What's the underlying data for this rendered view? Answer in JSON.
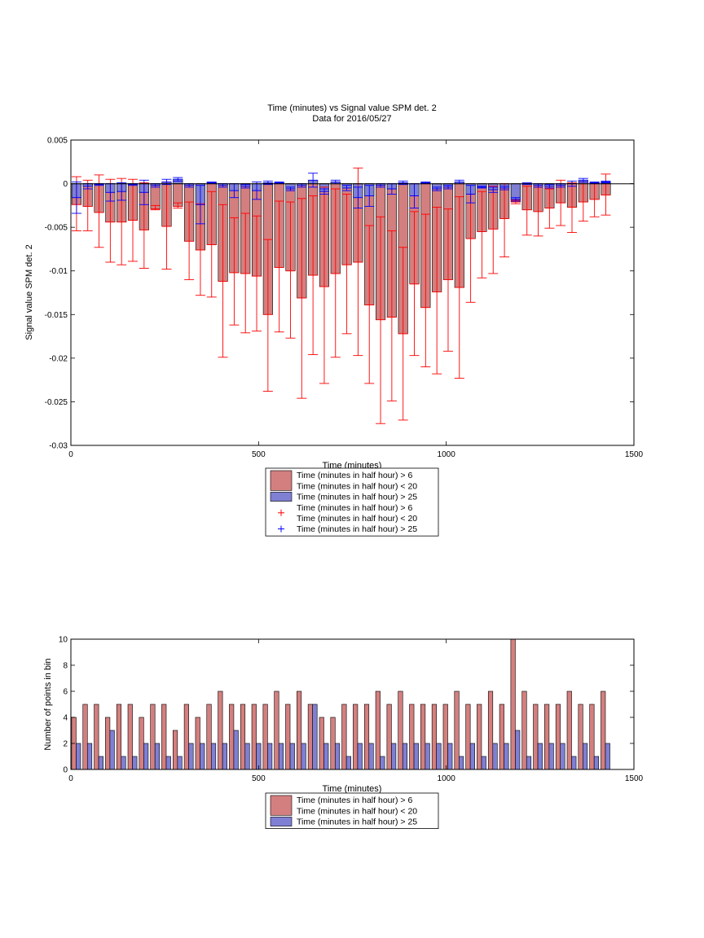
{
  "chart_data": [
    {
      "type": "bar",
      "title": "Time (minutes) vs Signal value SPM det. 2",
      "subtitle": "Data for 2016/05/27",
      "xlabel": "Time (minutes)",
      "ylabel": "Signal value SPM det. 2",
      "xlim": [
        0,
        1500
      ],
      "ylim": [
        -0.03,
        0.005
      ],
      "xticks": [
        0,
        500,
        1000,
        1500
      ],
      "xtick_labels": [
        "0",
        "500",
        "1000",
        "1500"
      ],
      "yticks": [
        -0.03,
        -0.025,
        -0.02,
        -0.015,
        -0.01,
        -0.005,
        0,
        0.005
      ],
      "ytick_labels": [
        "-0.03",
        "-0.025",
        "-0.02",
        "-0.015",
        "-0.01",
        "-0.005",
        "0",
        "0.005"
      ],
      "grid": false,
      "legend_position": "below",
      "x": [
        15,
        45,
        75,
        105,
        135,
        165,
        195,
        225,
        255,
        285,
        315,
        345,
        375,
        405,
        435,
        465,
        495,
        525,
        555,
        585,
        615,
        645,
        675,
        705,
        735,
        765,
        795,
        825,
        855,
        885,
        915,
        945,
        975,
        1005,
        1035,
        1065,
        1095,
        1125,
        1155,
        1185,
        1215,
        1245,
        1275,
        1305,
        1335,
        1365,
        1395,
        1425
      ],
      "series": [
        {
          "name": "Time (minutes in half hour) > 6\nTime (minutes in half hour) < 20",
          "color": "#d47f7f",
          "values": [
            -0.0024,
            -0.0026,
            -0.0033,
            -0.0044,
            -0.0044,
            -0.0042,
            -0.0053,
            -0.0029,
            -0.0049,
            -0.0026,
            -0.0066,
            -0.0076,
            -0.007,
            -0.0112,
            -0.0102,
            -0.0103,
            -0.0106,
            -0.015,
            -0.0096,
            -0.01,
            -0.0131,
            -0.0105,
            -0.0118,
            -0.0103,
            -0.0093,
            -0.009,
            -0.0139,
            -0.0156,
            -0.0153,
            -0.0172,
            -0.0115,
            -0.0142,
            -0.0124,
            -0.011,
            -0.0119,
            -0.0063,
            -0.0055,
            -0.0052,
            -0.004,
            -0.0021,
            -0.003,
            -0.0032,
            -0.0028,
            -0.0022,
            -0.0027,
            -0.0021,
            -0.0018,
            -0.0013
          ],
          "err_upper": [
            0.0008,
            0.0004,
            0.001,
            0.0005,
            0.0006,
            0.0005,
            0.0001,
            -0.0025,
            0.0002,
            -0.0022,
            -0.0021,
            -0.0023,
            -0.0009,
            -0.0024,
            -0.0039,
            -0.0034,
            -0.0037,
            -0.0064,
            -0.002,
            -0.0021,
            -0.0017,
            -0.0014,
            -0.0004,
            -0.0006,
            -0.0012,
            0.0018,
            -0.0048,
            -0.0038,
            -0.0054,
            -0.0073,
            -0.0032,
            -0.0035,
            -0.0027,
            -0.0029,
            -0.0015,
            -0.0012,
            -0.0009,
            -0.0003,
            0.0,
            -0.0019,
            -0.0003,
            -0.0004,
            -0.0006,
            0.0004,
            0.0001,
            0.0002,
            0.0001,
            0.0011
          ],
          "err_lower": [
            -0.0054,
            -0.0054,
            -0.0073,
            -0.009,
            -0.0093,
            -0.0089,
            -0.0097,
            -0.003,
            -0.0098,
            -0.0028,
            -0.011,
            -0.0128,
            -0.013,
            -0.0199,
            -0.0162,
            -0.0171,
            -0.0169,
            -0.0238,
            -0.017,
            -0.0177,
            -0.0246,
            -0.0196,
            -0.0229,
            -0.0199,
            -0.0172,
            -0.0197,
            -0.0229,
            -0.0275,
            -0.0249,
            -0.0271,
            -0.0197,
            -0.021,
            -0.0218,
            -0.0192,
            -0.0223,
            -0.0136,
            -0.0108,
            -0.0103,
            -0.0084,
            -0.0023,
            -0.0059,
            -0.006,
            -0.0051,
            -0.0048,
            -0.0056,
            -0.0043,
            -0.0038,
            -0.0036
          ]
        },
        {
          "name": "Time (minutes in half hour) > 25",
          "color": "#7f7fd4",
          "values": [
            -0.0016,
            -0.0003,
            -0.0001,
            -0.001,
            -0.0009,
            -0.0001,
            -0.001,
            -0.0002,
            0.0002,
            0.0005,
            -0.0002,
            -0.0024,
            0.0001,
            -0.0002,
            -0.0008,
            -0.0003,
            -0.0008,
            0.0001,
            0.0001,
            -0.0006,
            -0.0002,
            0.0004,
            -0.0009,
            0.0002,
            -0.0005,
            -0.0016,
            -0.0014,
            -0.0002,
            -0.0006,
            0.0001,
            -0.0014,
            0.0001,
            -0.0006,
            -0.0004,
            0.0002,
            -0.0012,
            -0.0004,
            -0.0007,
            -0.0005,
            -0.0018,
            0.0,
            -0.0002,
            -0.0003,
            -0.0002,
            0.0,
            0.0004,
            0.0001,
            0.0002
          ],
          "err_upper": [
            0.0002,
            0.0,
            0.0,
            0.0,
            0.0001,
            0.0,
            0.0004,
            0.0,
            0.0005,
            0.0007,
            0.0,
            -0.0002,
            0.0002,
            0.0,
            0.0,
            -0.0001,
            0.0002,
            0.0003,
            0.0002,
            -0.0004,
            0.0,
            0.0012,
            -0.0006,
            0.0004,
            -0.0002,
            -0.0004,
            -0.0002,
            0.0,
            0.0,
            0.0003,
            0.0,
            0.0002,
            -0.0004,
            -0.0002,
            0.0004,
            -0.0002,
            -0.0003,
            -0.0004,
            -0.0003,
            -0.0016,
            0.0001,
            0.0,
            -0.0001,
            0.0,
            0.0003,
            0.0006,
            0.0002,
            0.0003
          ],
          "err_lower": [
            -0.0034,
            -0.0006,
            -0.0002,
            -0.002,
            -0.0019,
            -0.0002,
            -0.0024,
            -0.0004,
            -0.0001,
            0.0003,
            -0.0004,
            -0.0046,
            0.0,
            -0.0004,
            -0.0016,
            -0.0005,
            -0.0018,
            -0.0001,
            0.0,
            -0.0008,
            -0.0004,
            -0.0004,
            -0.0012,
            0.0,
            -0.0008,
            -0.0028,
            -0.0026,
            -0.0004,
            -0.0012,
            -0.0001,
            -0.0028,
            0.0,
            -0.0008,
            -0.0006,
            0.0,
            -0.0022,
            -0.0005,
            -0.001,
            -0.0007,
            -0.002,
            -0.0001,
            -0.0004,
            -0.0005,
            -0.0004,
            -0.0003,
            0.0002,
            0.0,
            0.0001
          ]
        }
      ],
      "legend": [
        {
          "kind": "patch",
          "color": "#d47f7f",
          "lines": [
            "Time (minutes in half hour) > 6",
            "Time (minutes in half hour) < 20"
          ]
        },
        {
          "kind": "patch",
          "color": "#7f7fd4",
          "lines": [
            "Time (minutes in half hour) > 25"
          ]
        },
        {
          "kind": "marker",
          "color": "#ff0000",
          "lines": [
            "Time (minutes in half hour) > 6",
            "Time (minutes in half hour) < 20"
          ]
        },
        {
          "kind": "marker",
          "color": "#0000ff",
          "lines": [
            "Time (minutes in half hour) > 25"
          ]
        }
      ]
    },
    {
      "type": "bar",
      "xlabel": "Time (minutes)",
      "ylabel": "Number of points in bin",
      "xlim": [
        0,
        1500
      ],
      "ylim": [
        0,
        10
      ],
      "xticks": [
        0,
        500,
        1000,
        1500
      ],
      "xtick_labels": [
        "0",
        "500",
        "1000",
        "1500"
      ],
      "yticks": [
        0,
        2,
        4,
        6,
        8,
        10
      ],
      "ytick_labels": [
        "0",
        "2",
        "4",
        "6",
        "8",
        "10"
      ],
      "grid": false,
      "legend_position": "below",
      "x": [
        15,
        45,
        75,
        105,
        135,
        165,
        195,
        225,
        255,
        285,
        315,
        345,
        375,
        405,
        435,
        465,
        495,
        525,
        555,
        585,
        615,
        645,
        675,
        705,
        735,
        765,
        795,
        825,
        855,
        885,
        915,
        945,
        975,
        1005,
        1035,
        1065,
        1095,
        1125,
        1155,
        1185,
        1215,
        1245,
        1275,
        1305,
        1335,
        1365,
        1395,
        1425
      ],
      "series": [
        {
          "name": "Time (minutes in half hour) > 6\nTime (minutes in half hour) < 20",
          "color": "#d47f7f",
          "values": [
            4,
            5,
            5,
            4,
            5,
            5,
            4,
            5,
            5,
            3,
            5,
            4,
            5,
            6,
            5,
            5,
            5,
            5,
            6,
            5,
            6,
            5,
            4,
            4,
            5,
            5,
            5,
            6,
            5,
            6,
            5,
            5,
            5,
            5,
            6,
            5,
            5,
            6,
            5,
            10,
            6,
            5,
            5,
            5,
            6,
            5,
            5,
            6
          ]
        },
        {
          "name": "Time (minutes in half hour) > 25",
          "color": "#7f7fd4",
          "values": [
            2,
            2,
            1,
            3,
            1,
            1,
            2,
            2,
            1,
            1,
            2,
            2,
            2,
            2,
            3,
            2,
            2,
            2,
            2,
            2,
            2,
            5,
            2,
            2,
            1,
            2,
            2,
            1,
            2,
            2,
            2,
            2,
            2,
            2,
            1,
            2,
            1,
            2,
            2,
            3,
            1,
            2,
            2,
            2,
            1,
            2,
            1,
            2
          ]
        }
      ],
      "legend": [
        {
          "kind": "patch",
          "color": "#d47f7f",
          "lines": [
            "Time (minutes in half hour) > 6",
            "Time (minutes in half hour) < 20"
          ]
        },
        {
          "kind": "patch",
          "color": "#7f7fd4",
          "lines": [
            "Time (minutes in half hour) > 25"
          ]
        }
      ]
    }
  ]
}
